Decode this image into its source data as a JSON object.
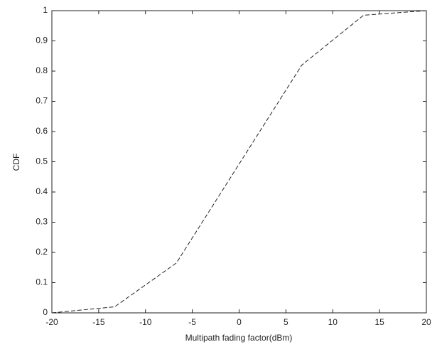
{
  "chart_data": {
    "type": "line",
    "x_label": "Multipath fading factor(dBm)",
    "y_label": "CDF",
    "x": [
      -20,
      -13.3,
      -6.7,
      6.7,
      13.3,
      20
    ],
    "series": [
      {
        "color": "#222222",
        "dash": "6,3",
        "values": [
          0,
          0.02,
          0.165,
          0.82,
          0.985,
          1
        ]
      }
    ],
    "xlim": [
      -20,
      20
    ],
    "xticks": [
      -20,
      -15,
      -10,
      -5,
      0,
      5,
      10,
      15,
      20
    ],
    "ylim": [
      0,
      1
    ],
    "yticks": [
      0,
      0.1,
      0.2,
      0.3,
      0.4,
      0.5,
      0.6,
      0.7,
      0.8,
      0.9,
      1
    ],
    "grid": false
  }
}
